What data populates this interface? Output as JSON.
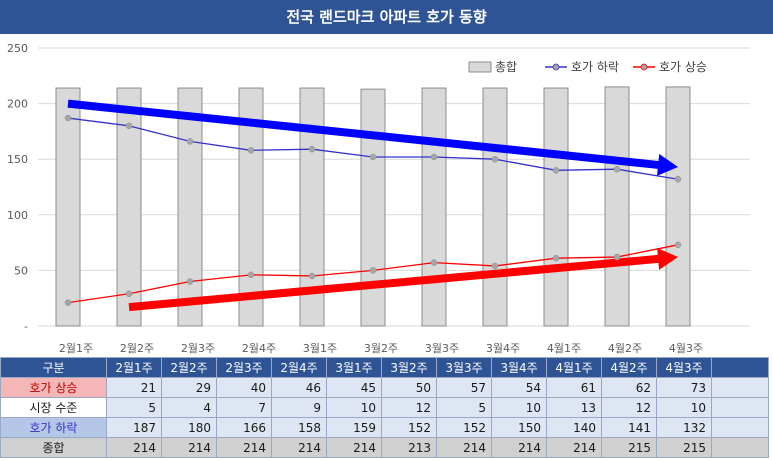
{
  "title": "전국 랜드마크 아파트 호가 동향",
  "chart_data": {
    "type": "bar",
    "categories": [
      "2월1주",
      "2월2주",
      "2월3주",
      "2월4주",
      "3월1주",
      "3월2주",
      "3월3주",
      "3월4주",
      "4월1주",
      "4월2주",
      "4월3주"
    ],
    "ylim": [
      0,
      250
    ],
    "yticks": [
      "-",
      "50",
      "100",
      "150",
      "200",
      "250"
    ],
    "grid": true,
    "legend_position": "top-right",
    "series": [
      {
        "name": "총합",
        "kind": "bar",
        "color": "#d9d9d9",
        "values": [
          214,
          214,
          214,
          214,
          214,
          213,
          214,
          214,
          214,
          215,
          215
        ]
      },
      {
        "name": "호가 하락",
        "kind": "line",
        "color": "#3333cc",
        "values": [
          187,
          180,
          166,
          158,
          159,
          152,
          152,
          150,
          140,
          141,
          132
        ]
      },
      {
        "name": "호가 상승",
        "kind": "line",
        "color": "#ff0000",
        "values": [
          21,
          29,
          40,
          46,
          45,
          50,
          57,
          54,
          61,
          62,
          73
        ]
      }
    ],
    "trend_arrows": [
      {
        "color": "#0000ff",
        "from": [
          0,
          200
        ],
        "to": [
          10,
          143
        ]
      },
      {
        "color": "#ff0000",
        "from": [
          1,
          17
        ],
        "to": [
          10,
          62
        ]
      }
    ]
  },
  "table": {
    "header": "구분",
    "rows": [
      {
        "label": "호가 상승",
        "values": [
          21,
          29,
          40,
          46,
          45,
          50,
          57,
          54,
          61,
          62,
          73
        ]
      },
      {
        "label": "시장 수준",
        "values": [
          5,
          4,
          7,
          9,
          10,
          12,
          5,
          10,
          13,
          12,
          10
        ]
      },
      {
        "label": "호가 하락",
        "values": [
          187,
          180,
          166,
          158,
          159,
          152,
          152,
          150,
          140,
          141,
          132
        ]
      },
      {
        "label": "종합",
        "values": [
          214,
          214,
          214,
          214,
          214,
          213,
          214,
          214,
          214,
          215,
          215
        ]
      }
    ]
  }
}
